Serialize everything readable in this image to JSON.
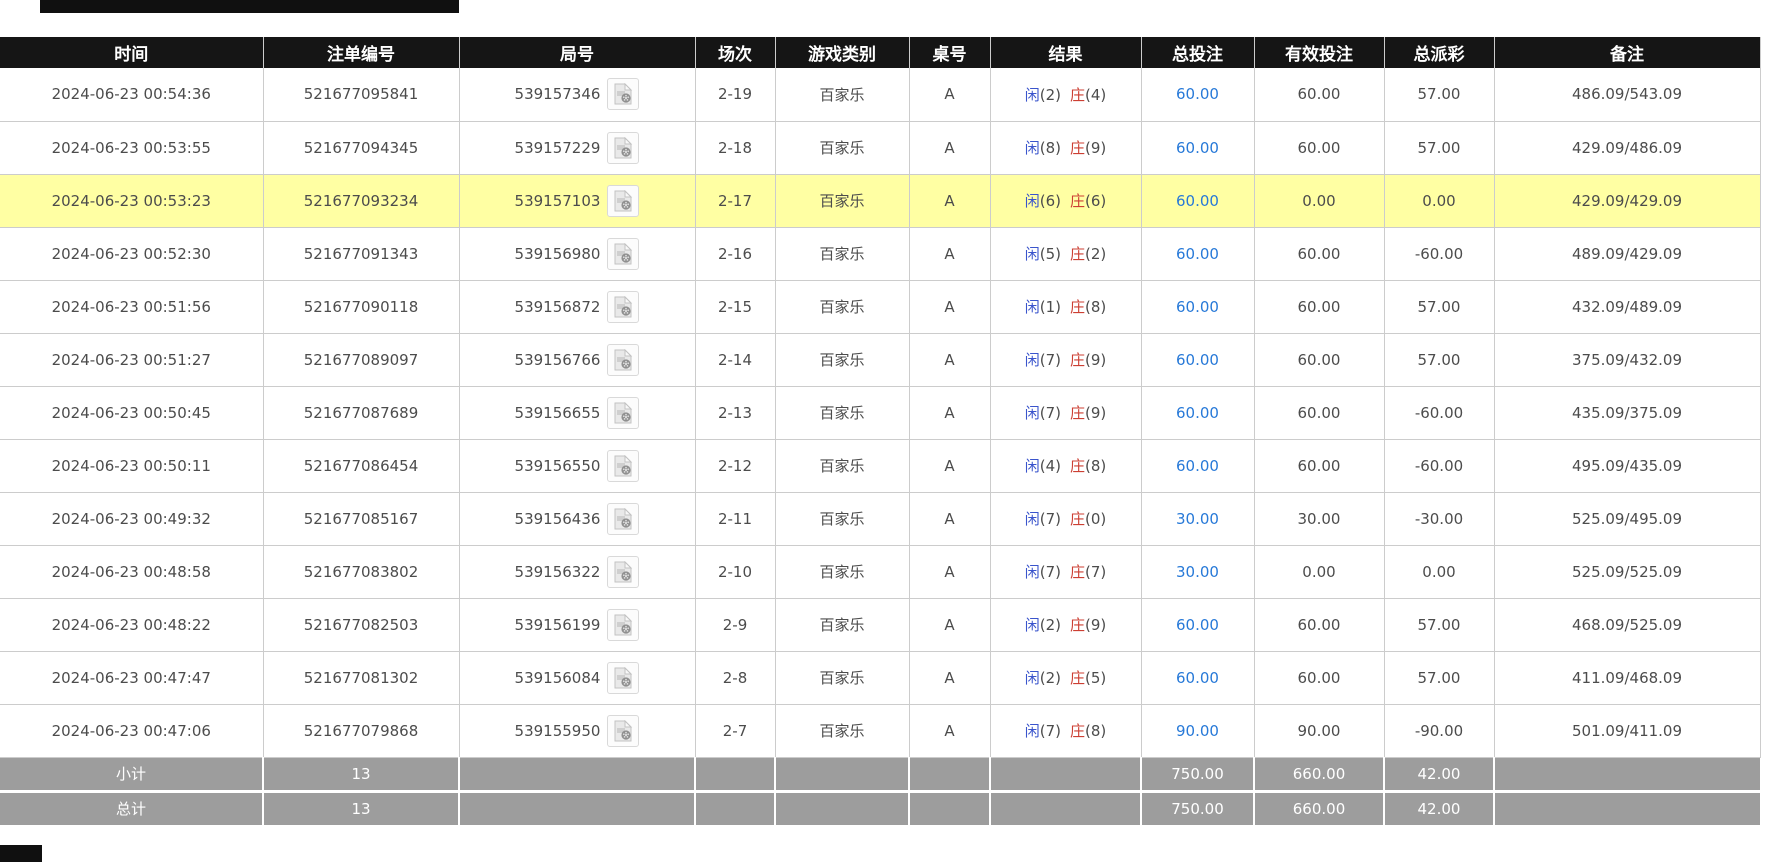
{
  "colors": {
    "header_bg": "#151515",
    "highlight_row": "#ffffa3",
    "summary_bg": "#9d9d9d",
    "amount_link_blue": "#2779d8",
    "player_blue": "#3a54cc",
    "banker_red": "#cc3f33",
    "negative_red": "#ee0000"
  },
  "icons": {
    "round_video_icon": "video-replay-icon"
  },
  "table": {
    "headers": [
      "时间",
      "注单编号",
      "局号",
      "场次",
      "游戏类别",
      "桌号",
      "结果",
      "总投注",
      "有效投注",
      "总派彩",
      "备注"
    ],
    "rows": [
      {
        "time": "2024-06-23 00:54:36",
        "bet_id": "521677095841",
        "round_id": "539157346",
        "session": "2-19",
        "game_type": "百家乐",
        "table_no": "A",
        "player_side": "闲",
        "player_score": "(2)",
        "banker_side": "庄",
        "banker_score": "(4)",
        "total_bet": "60.00",
        "valid_bet": "60.00",
        "payout": "57.00",
        "remark": "486.09/543.09",
        "highlighted": false
      },
      {
        "time": "2024-06-23 00:53:55",
        "bet_id": "521677094345",
        "round_id": "539157229",
        "session": "2-18",
        "game_type": "百家乐",
        "table_no": "A",
        "player_side": "闲",
        "player_score": "(8)",
        "banker_side": "庄",
        "banker_score": "(9)",
        "total_bet": "60.00",
        "valid_bet": "60.00",
        "payout": "57.00",
        "remark": "429.09/486.09",
        "highlighted": false
      },
      {
        "time": "2024-06-23 00:53:23",
        "bet_id": "521677093234",
        "round_id": "539157103",
        "session": "2-17",
        "game_type": "百家乐",
        "table_no": "A",
        "player_side": "闲",
        "player_score": "(6)",
        "banker_side": "庄",
        "banker_score": "(6)",
        "total_bet": "60.00",
        "valid_bet": "0.00",
        "payout": "0.00",
        "remark": "429.09/429.09",
        "highlighted": true
      },
      {
        "time": "2024-06-23 00:52:30",
        "bet_id": "521677091343",
        "round_id": "539156980",
        "session": "2-16",
        "game_type": "百家乐",
        "table_no": "A",
        "player_side": "闲",
        "player_score": "(5)",
        "banker_side": "庄",
        "banker_score": "(2)",
        "total_bet": "60.00",
        "valid_bet": "60.00",
        "payout": "-60.00",
        "remark": "489.09/429.09",
        "highlighted": false
      },
      {
        "time": "2024-06-23 00:51:56",
        "bet_id": "521677090118",
        "round_id": "539156872",
        "session": "2-15",
        "game_type": "百家乐",
        "table_no": "A",
        "player_side": "闲",
        "player_score": "(1)",
        "banker_side": "庄",
        "banker_score": "(8)",
        "total_bet": "60.00",
        "valid_bet": "60.00",
        "payout": "57.00",
        "remark": "432.09/489.09",
        "highlighted": false
      },
      {
        "time": "2024-06-23 00:51:27",
        "bet_id": "521677089097",
        "round_id": "539156766",
        "session": "2-14",
        "game_type": "百家乐",
        "table_no": "A",
        "player_side": "闲",
        "player_score": "(7)",
        "banker_side": "庄",
        "banker_score": "(9)",
        "total_bet": "60.00",
        "valid_bet": "60.00",
        "payout": "57.00",
        "remark": "375.09/432.09",
        "highlighted": false
      },
      {
        "time": "2024-06-23 00:50:45",
        "bet_id": "521677087689",
        "round_id": "539156655",
        "session": "2-13",
        "game_type": "百家乐",
        "table_no": "A",
        "player_side": "闲",
        "player_score": "(7)",
        "banker_side": "庄",
        "banker_score": "(9)",
        "total_bet": "60.00",
        "valid_bet": "60.00",
        "payout": "-60.00",
        "remark": "435.09/375.09",
        "highlighted": false
      },
      {
        "time": "2024-06-23 00:50:11",
        "bet_id": "521677086454",
        "round_id": "539156550",
        "session": "2-12",
        "game_type": "百家乐",
        "table_no": "A",
        "player_side": "闲",
        "player_score": "(4)",
        "banker_side": "庄",
        "banker_score": "(8)",
        "total_bet": "60.00",
        "valid_bet": "60.00",
        "payout": "-60.00",
        "remark": "495.09/435.09",
        "highlighted": false
      },
      {
        "time": "2024-06-23 00:49:32",
        "bet_id": "521677085167",
        "round_id": "539156436",
        "session": "2-11",
        "game_type": "百家乐",
        "table_no": "A",
        "player_side": "闲",
        "player_score": "(7)",
        "banker_side": "庄",
        "banker_score": "(0)",
        "total_bet": "30.00",
        "valid_bet": "30.00",
        "payout": "-30.00",
        "remark": "525.09/495.09",
        "highlighted": false
      },
      {
        "time": "2024-06-23 00:48:58",
        "bet_id": "521677083802",
        "round_id": "539156322",
        "session": "2-10",
        "game_type": "百家乐",
        "table_no": "A",
        "player_side": "闲",
        "player_score": "(7)",
        "banker_side": "庄",
        "banker_score": "(7)",
        "total_bet": "30.00",
        "valid_bet": "0.00",
        "payout": "0.00",
        "remark": "525.09/525.09",
        "highlighted": false
      },
      {
        "time": "2024-06-23 00:48:22",
        "bet_id": "521677082503",
        "round_id": "539156199",
        "session": "2-9",
        "game_type": "百家乐",
        "table_no": "A",
        "player_side": "闲",
        "player_score": "(2)",
        "banker_side": "庄",
        "banker_score": "(9)",
        "total_bet": "60.00",
        "valid_bet": "60.00",
        "payout": "57.00",
        "remark": "468.09/525.09",
        "highlighted": false
      },
      {
        "time": "2024-06-23 00:47:47",
        "bet_id": "521677081302",
        "round_id": "539156084",
        "session": "2-8",
        "game_type": "百家乐",
        "table_no": "A",
        "player_side": "闲",
        "player_score": "(2)",
        "banker_side": "庄",
        "banker_score": "(5)",
        "total_bet": "60.00",
        "valid_bet": "60.00",
        "payout": "57.00",
        "remark": "411.09/468.09",
        "highlighted": false
      },
      {
        "time": "2024-06-23 00:47:06",
        "bet_id": "521677079868",
        "round_id": "539155950",
        "session": "2-7",
        "game_type": "百家乐",
        "table_no": "A",
        "player_side": "闲",
        "player_score": "(7)",
        "banker_side": "庄",
        "banker_score": "(8)",
        "total_bet": "90.00",
        "valid_bet": "90.00",
        "payout": "-90.00",
        "remark": "501.09/411.09",
        "highlighted": false
      }
    ],
    "subtotal": {
      "label": "小计",
      "count": "13",
      "total_bet": "750.00",
      "valid_bet": "660.00",
      "payout": "42.00"
    },
    "grand_total": {
      "label": "总计",
      "count": "13",
      "total_bet": "750.00",
      "valid_bet": "660.00",
      "payout": "42.00"
    }
  }
}
